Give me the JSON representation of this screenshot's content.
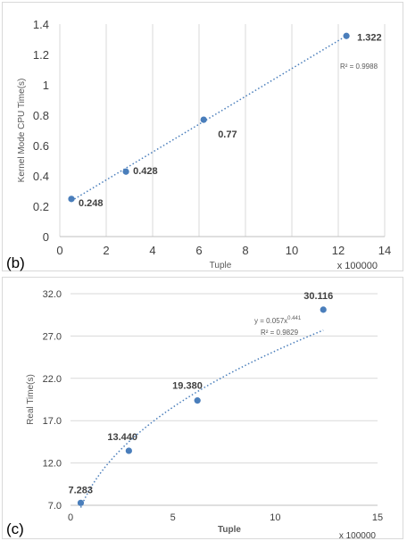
{
  "chart_data": [
    {
      "panel_label": "(b)",
      "type": "scatter",
      "xlabel": "Tuple",
      "ylabel": "Kernel Mode CPU Time(s)",
      "x_multiplier_label": "x 100000",
      "xlim": [
        0,
        14
      ],
      "ylim": [
        0,
        1.4
      ],
      "x_ticks": [
        "0",
        "2",
        "4",
        "6",
        "8",
        "10",
        "12",
        "14"
      ],
      "y_ticks": [
        "0",
        "0.2",
        "0.4",
        "0.6",
        "0.8",
        "1",
        "1.2",
        "1.4"
      ],
      "grid": "vertical",
      "series": [
        {
          "x": [
            0.5,
            2.85,
            6.2,
            12.35
          ],
          "y": [
            0.248,
            0.428,
            0.77,
            1.322
          ],
          "labels": [
            "0.248",
            "0.428",
            "0.77",
            "1.322"
          ],
          "color": "#4a7ebb"
        }
      ],
      "trendline": {
        "type": "linear",
        "r2_label": "R² = 0.9988"
      }
    },
    {
      "panel_label": "(c)",
      "type": "scatter",
      "xlabel": "Tuple",
      "ylabel": "Real Time(s)",
      "x_multiplier_label": "x 100000",
      "xlim": [
        0,
        15
      ],
      "ylim": [
        7,
        32
      ],
      "x_ticks": [
        "0",
        "5",
        "10",
        "15"
      ],
      "y_ticks": [
        "7.0",
        "12.0",
        "17.0",
        "22.0",
        "27.0",
        "32.0"
      ],
      "grid": "horizontal",
      "series": [
        {
          "x": [
            0.5,
            2.85,
            6.2,
            12.35
          ],
          "y": [
            7.283,
            13.44,
            19.38,
            30.116
          ],
          "labels": [
            "7.283",
            "13.440",
            "19.380",
            "30.116"
          ],
          "color": "#4a7ebb"
        }
      ],
      "trendline": {
        "type": "power",
        "equation_base": "y = 0.057x",
        "equation_exponent": "0.441",
        "coefficient": 0.057,
        "exponent": 0.441,
        "x_scale": 100000,
        "r2_label": "R² = 0.9829"
      }
    }
  ]
}
